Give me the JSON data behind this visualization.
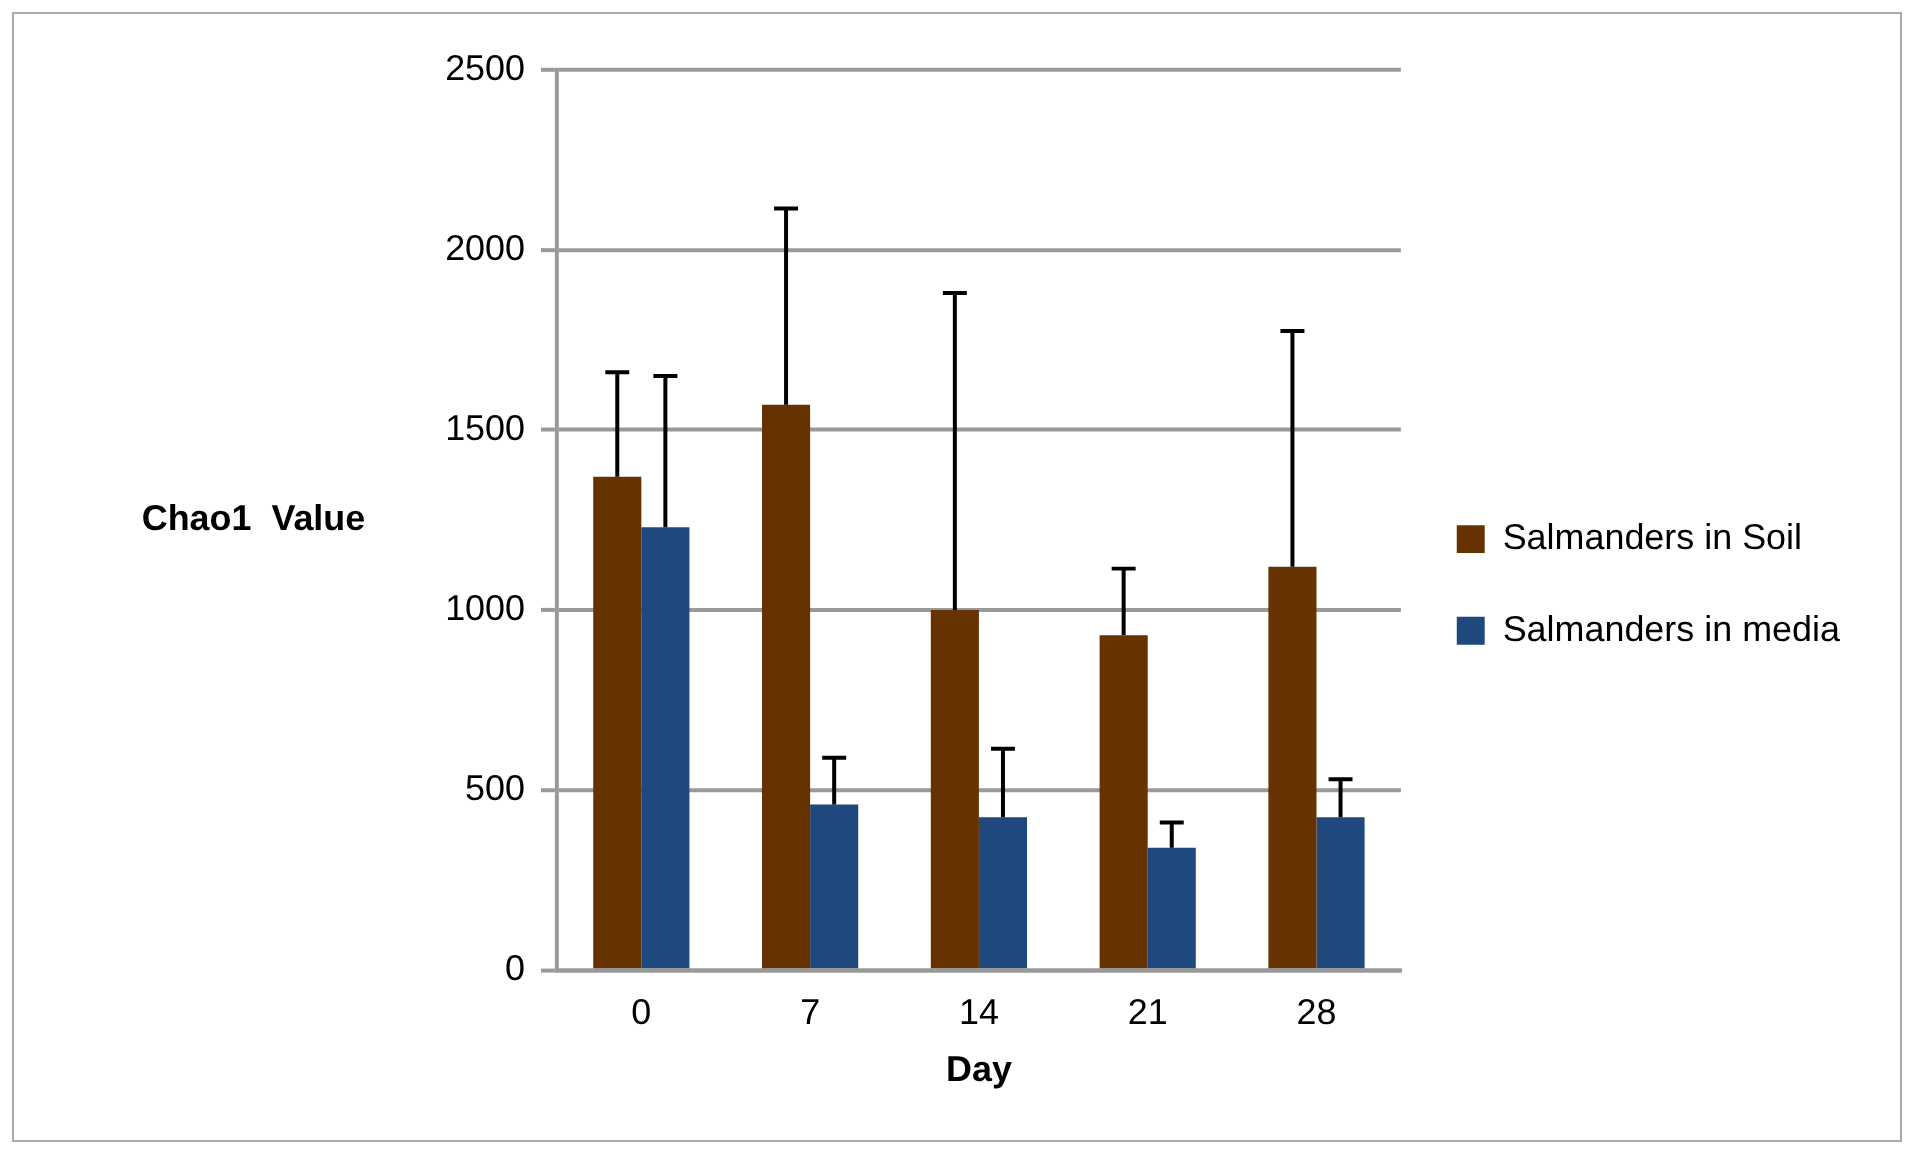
{
  "chart_data": {
    "type": "bar",
    "xlabel": "Day",
    "ylabel": "Chao1  Value",
    "categories": [
      "0",
      "7",
      "14",
      "21",
      "28"
    ],
    "series": [
      {
        "name": "Salmanders in Soil",
        "color": "#663300",
        "values": [
          1370,
          1570,
          1000,
          930,
          1120
        ],
        "errors": [
          [
            1370,
            1660
          ],
          [
            1570,
            2115
          ],
          [
            1000,
            1880
          ],
          [
            930,
            1115
          ],
          [
            1120,
            1775
          ]
        ]
      },
      {
        "name": "Salmanders in media",
        "color": "#1f497d",
        "values": [
          1230,
          460,
          425,
          340,
          425
        ],
        "errors": [
          [
            1230,
            1650
          ],
          [
            460,
            590
          ],
          [
            425,
            615
          ],
          [
            340,
            410
          ],
          [
            425,
            530
          ]
        ]
      }
    ],
    "ylim": [
      0,
      2500
    ],
    "yticks": [
      0,
      500,
      1000,
      1500,
      2000,
      2500
    ],
    "grid": "y",
    "legend": "right"
  }
}
